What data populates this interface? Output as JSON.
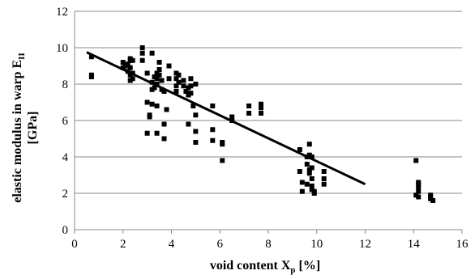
{
  "chart_data": {
    "type": "scatter",
    "xlabel": {
      "main": "void content X",
      "sub": "p",
      "tail": " [%]"
    },
    "ylabel": {
      "line1_main": "elastic modulus in warp E",
      "line1_sub": "II",
      "line2": "[GPa]"
    },
    "xlim": [
      0,
      16
    ],
    "ylim": [
      0,
      12
    ],
    "x_ticks": [
      0,
      2,
      4,
      6,
      8,
      10,
      12,
      14,
      16
    ],
    "y_ticks": [
      0,
      2,
      4,
      6,
      8,
      10,
      12
    ],
    "grid": {
      "horizontal": true,
      "vertical": false
    },
    "legend": "none",
    "series": [
      {
        "points": [
          [
            0.7,
            9.5
          ],
          [
            0.7,
            8.5
          ],
          [
            0.7,
            8.4
          ],
          [
            2.0,
            9.2
          ],
          [
            2.0,
            8.9
          ],
          [
            2.1,
            9.0
          ],
          [
            2.2,
            8.7
          ],
          [
            2.2,
            9.1
          ],
          [
            2.3,
            9.4
          ],
          [
            2.3,
            9.3
          ],
          [
            2.3,
            8.9
          ],
          [
            2.3,
            8.5
          ],
          [
            2.3,
            8.2
          ],
          [
            2.4,
            9.3
          ],
          [
            2.4,
            8.6
          ],
          [
            2.4,
            8.3
          ],
          [
            2.8,
            10.0
          ],
          [
            2.8,
            9.7
          ],
          [
            2.8,
            9.3
          ],
          [
            3.0,
            8.6
          ],
          [
            3.0,
            7.0
          ],
          [
            3.0,
            5.3
          ],
          [
            3.1,
            6.3
          ],
          [
            3.1,
            6.2
          ],
          [
            3.2,
            9.7
          ],
          [
            3.2,
            8.1
          ],
          [
            3.2,
            7.7
          ],
          [
            3.2,
            6.9
          ],
          [
            3.3,
            8.4
          ],
          [
            3.3,
            7.8
          ],
          [
            3.4,
            8.6
          ],
          [
            3.4,
            8.3
          ],
          [
            3.4,
            8.0
          ],
          [
            3.4,
            6.8
          ],
          [
            3.4,
            5.3
          ],
          [
            3.5,
            9.2
          ],
          [
            3.5,
            8.8
          ],
          [
            3.5,
            8.5
          ],
          [
            3.6,
            8.2
          ],
          [
            3.6,
            7.7
          ],
          [
            3.7,
            7.6
          ],
          [
            3.7,
            5.8
          ],
          [
            3.7,
            5.0
          ],
          [
            3.8,
            6.6
          ],
          [
            3.9,
            9.0
          ],
          [
            3.9,
            8.3
          ],
          [
            4.2,
            8.6
          ],
          [
            4.2,
            8.3
          ],
          [
            4.2,
            7.9
          ],
          [
            4.2,
            7.6
          ],
          [
            4.3,
            8.5
          ],
          [
            4.3,
            8.1
          ],
          [
            4.5,
            8.2
          ],
          [
            4.5,
            7.9
          ],
          [
            4.6,
            7.6
          ],
          [
            4.7,
            7.8
          ],
          [
            4.7,
            7.4
          ],
          [
            4.7,
            5.8
          ],
          [
            4.8,
            8.3
          ],
          [
            4.8,
            7.9
          ],
          [
            4.8,
            7.5
          ],
          [
            4.9,
            6.8
          ],
          [
            5.0,
            8.0
          ],
          [
            5.0,
            6.3
          ],
          [
            5.0,
            5.4
          ],
          [
            5.0,
            4.8
          ],
          [
            5.7,
            6.8
          ],
          [
            5.7,
            5.5
          ],
          [
            5.7,
            4.9
          ],
          [
            6.1,
            4.8
          ],
          [
            6.1,
            4.7
          ],
          [
            6.1,
            3.8
          ],
          [
            6.5,
            6.2
          ],
          [
            6.5,
            6.0
          ],
          [
            7.2,
            6.8
          ],
          [
            7.2,
            6.4
          ],
          [
            7.7,
            6.9
          ],
          [
            7.7,
            6.7
          ],
          [
            7.7,
            6.4
          ],
          [
            9.3,
            4.4
          ],
          [
            9.3,
            3.2
          ],
          [
            9.4,
            2.6
          ],
          [
            9.4,
            2.1
          ],
          [
            9.6,
            4.0
          ],
          [
            9.6,
            3.6
          ],
          [
            9.6,
            2.5
          ],
          [
            9.7,
            4.7
          ],
          [
            9.7,
            4.1
          ],
          [
            9.7,
            3.3
          ],
          [
            9.7,
            3.1
          ],
          [
            9.8,
            4.0
          ],
          [
            9.8,
            3.4
          ],
          [
            9.8,
            2.8
          ],
          [
            9.8,
            2.4
          ],
          [
            9.8,
            2.2
          ],
          [
            9.9,
            2.1
          ],
          [
            9.9,
            2.0
          ],
          [
            10.3,
            3.2
          ],
          [
            10.3,
            2.8
          ],
          [
            10.3,
            2.5
          ],
          [
            14.1,
            3.8
          ],
          [
            14.2,
            2.6
          ],
          [
            14.2,
            2.5
          ],
          [
            14.2,
            2.3
          ],
          [
            14.2,
            2.1
          ],
          [
            14.1,
            1.9
          ],
          [
            14.2,
            1.8
          ],
          [
            14.7,
            1.9
          ],
          [
            14.7,
            1.8
          ],
          [
            14.7,
            1.7
          ],
          [
            14.8,
            1.6
          ]
        ]
      }
    ],
    "trendline": {
      "x": [
        0.5,
        12.0
      ],
      "y": [
        9.75,
        2.5
      ]
    }
  }
}
